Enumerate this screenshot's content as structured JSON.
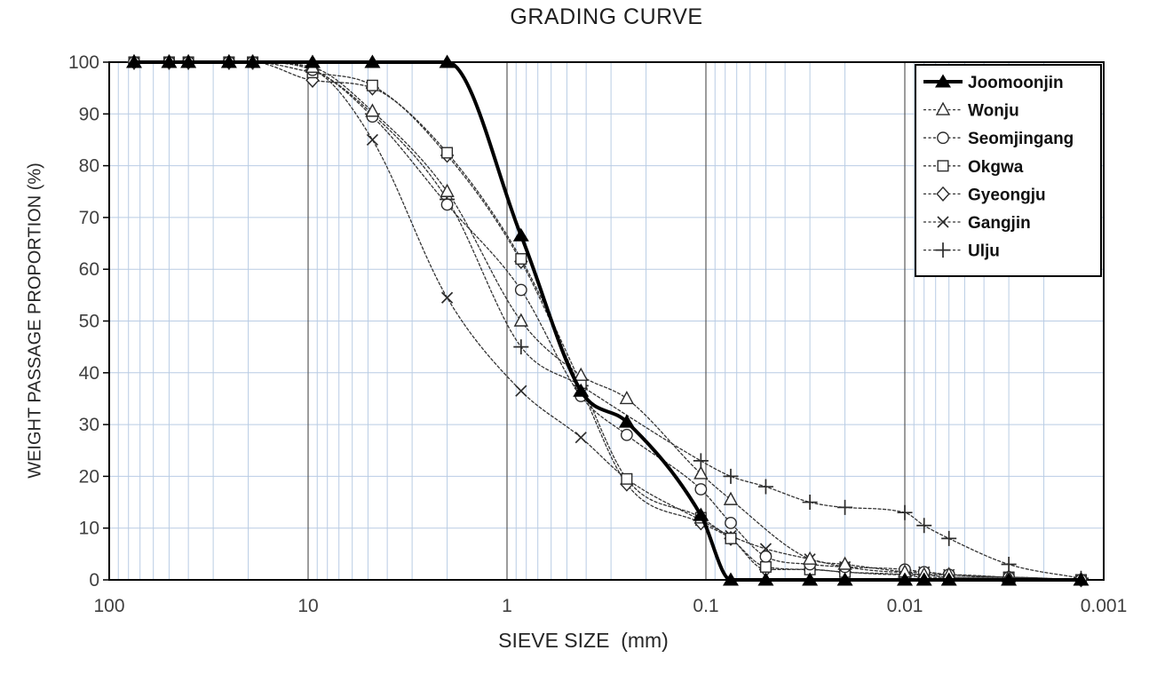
{
  "chart_data": {
    "type": "line",
    "title": "GRADING CURVE",
    "xlabel": "SIEVE SIZE  (mm)",
    "ylabel": "WEIGHT PASSAGE PROPORTION (%)",
    "x_scale": "log-reversed",
    "xlim": [
      100,
      0.001
    ],
    "ylim": [
      0,
      100
    ],
    "x_ticks": [
      {
        "label": "100",
        "value": 100
      },
      {
        "label": "10",
        "value": 10
      },
      {
        "label": "1",
        "value": 1
      },
      {
        "label": "0.1",
        "value": 0.1
      },
      {
        "label": "0.01",
        "value": 0.01
      },
      {
        "label": "0.001",
        "value": 0.001
      }
    ],
    "y_ticks": [
      0,
      10,
      20,
      30,
      40,
      50,
      60,
      70,
      80,
      90,
      100
    ],
    "grid": {
      "minor_vertical": true,
      "horizontal_every": 10,
      "minor_color": "#b9cce4",
      "major_color": "#595959",
      "frame_color": "#000000"
    },
    "legend_position": "top-right",
    "series_color": "#000000",
    "series": [
      {
        "name": "Joomoonjin",
        "marker": "triangle-filled",
        "line": "solid",
        "emphasis": true,
        "points": [
          [
            75,
            100
          ],
          [
            50,
            100
          ],
          [
            40,
            100
          ],
          [
            25,
            100
          ],
          [
            19,
            100
          ],
          [
            9.5,
            100
          ],
          [
            4.75,
            100
          ],
          [
            2,
            100
          ],
          [
            0.85,
            66.5
          ],
          [
            0.425,
            36.5
          ],
          [
            0.25,
            30.5
          ],
          [
            0.106,
            12.5
          ],
          [
            0.075,
            0
          ],
          [
            0.05,
            0
          ],
          [
            0.03,
            0
          ],
          [
            0.02,
            0
          ],
          [
            0.01,
            0
          ],
          [
            0.008,
            0
          ],
          [
            0.006,
            0
          ],
          [
            0.003,
            0
          ],
          [
            0.0013,
            0
          ]
        ]
      },
      {
        "name": "Wonju",
        "marker": "triangle-open",
        "line": "dashed",
        "emphasis": false,
        "points": [
          [
            75,
            100
          ],
          [
            50,
            100
          ],
          [
            40,
            100
          ],
          [
            25,
            100
          ],
          [
            19,
            100
          ],
          [
            9.5,
            99
          ],
          [
            4.75,
            90.5
          ],
          [
            2,
            75
          ],
          [
            0.85,
            50
          ],
          [
            0.425,
            39.5
          ],
          [
            0.25,
            35
          ],
          [
            0.106,
            20.5
          ],
          [
            0.075,
            15.5
          ],
          [
            0.03,
            4
          ],
          [
            0.02,
            3
          ],
          [
            0.01,
            1.5
          ],
          [
            0.008,
            1
          ],
          [
            0.006,
            1
          ],
          [
            0.003,
            0.5
          ],
          [
            0.0013,
            0
          ]
        ]
      },
      {
        "name": "Seomjingang",
        "marker": "circle-open",
        "line": "dashed",
        "emphasis": false,
        "points": [
          [
            75,
            100
          ],
          [
            50,
            100
          ],
          [
            40,
            100
          ],
          [
            25,
            100
          ],
          [
            19,
            100
          ],
          [
            9.5,
            98.5
          ],
          [
            4.75,
            89.5
          ],
          [
            2,
            72.5
          ],
          [
            0.85,
            56
          ],
          [
            0.425,
            35.5
          ],
          [
            0.25,
            28
          ],
          [
            0.106,
            17.5
          ],
          [
            0.075,
            11
          ],
          [
            0.05,
            4.5
          ],
          [
            0.03,
            3
          ],
          [
            0.02,
            2.5
          ],
          [
            0.01,
            2
          ],
          [
            0.008,
            1.5
          ],
          [
            0.006,
            1
          ],
          [
            0.003,
            0.5
          ],
          [
            0.0013,
            0
          ]
        ]
      },
      {
        "name": "Okgwa",
        "marker": "square-open",
        "line": "dashed",
        "emphasis": false,
        "points": [
          [
            75,
            100
          ],
          [
            50,
            100
          ],
          [
            40,
            100
          ],
          [
            25,
            100
          ],
          [
            19,
            100
          ],
          [
            9.5,
            98
          ],
          [
            4.75,
            95.5
          ],
          [
            2,
            82.5
          ],
          [
            0.85,
            62
          ],
          [
            0.425,
            38
          ],
          [
            0.25,
            19.5
          ],
          [
            0.106,
            12
          ],
          [
            0.075,
            8
          ],
          [
            0.05,
            2.5
          ],
          [
            0.03,
            2
          ],
          [
            0.02,
            1.5
          ],
          [
            0.01,
            1
          ],
          [
            0.008,
            1
          ],
          [
            0.006,
            0.5
          ],
          [
            0.003,
            0.5
          ],
          [
            0.0013,
            0
          ]
        ]
      },
      {
        "name": "Gyeongju",
        "marker": "diamond-open",
        "line": "dashed",
        "emphasis": false,
        "points": [
          [
            75,
            100
          ],
          [
            50,
            100
          ],
          [
            40,
            100
          ],
          [
            25,
            100
          ],
          [
            19,
            100
          ],
          [
            9.5,
            96.5
          ],
          [
            4.75,
            95
          ],
          [
            2,
            82
          ],
          [
            0.85,
            61.5
          ],
          [
            0.425,
            37
          ],
          [
            0.25,
            18.5
          ],
          [
            0.106,
            11
          ],
          [
            0.075,
            8
          ],
          [
            0.05,
            2
          ],
          [
            0.03,
            2
          ],
          [
            0.02,
            1.5
          ],
          [
            0.01,
            1
          ],
          [
            0.008,
            0.5
          ],
          [
            0.006,
            0.5
          ],
          [
            0.003,
            0.5
          ],
          [
            0.0013,
            0
          ]
        ]
      },
      {
        "name": "Gangjin",
        "marker": "x",
        "line": "dashed",
        "emphasis": false,
        "points": [
          [
            75,
            100
          ],
          [
            50,
            100
          ],
          [
            40,
            100
          ],
          [
            25,
            100
          ],
          [
            19,
            100
          ],
          [
            9.5,
            98.5
          ],
          [
            4.75,
            85
          ],
          [
            2,
            54.5
          ],
          [
            0.85,
            36.5
          ],
          [
            0.425,
            27.5
          ],
          [
            0.25,
            19.5
          ],
          [
            0.106,
            11.5
          ],
          [
            0.075,
            8.5
          ],
          [
            0.05,
            6
          ],
          [
            0.03,
            4
          ],
          [
            0.02,
            2.5
          ],
          [
            0.01,
            1.5
          ],
          [
            0.008,
            1.5
          ],
          [
            0.006,
            1
          ],
          [
            0.003,
            0.5
          ],
          [
            0.0013,
            0
          ]
        ]
      },
      {
        "name": "Ulju",
        "marker": "plus",
        "line": "dashed",
        "emphasis": false,
        "points": [
          [
            75,
            100
          ],
          [
            50,
            100
          ],
          [
            40,
            100
          ],
          [
            25,
            100
          ],
          [
            19,
            100
          ],
          [
            9.5,
            98.5
          ],
          [
            4.75,
            90
          ],
          [
            2,
            73.5
          ],
          [
            0.85,
            45
          ],
          [
            0.425,
            37.5
          ],
          [
            0.106,
            23
          ],
          [
            0.075,
            20
          ],
          [
            0.05,
            18
          ],
          [
            0.03,
            15
          ],
          [
            0.02,
            14
          ],
          [
            0.01,
            13
          ],
          [
            0.008,
            10.5
          ],
          [
            0.006,
            8
          ],
          [
            0.003,
            3
          ],
          [
            0.0013,
            0.3
          ]
        ]
      }
    ]
  }
}
